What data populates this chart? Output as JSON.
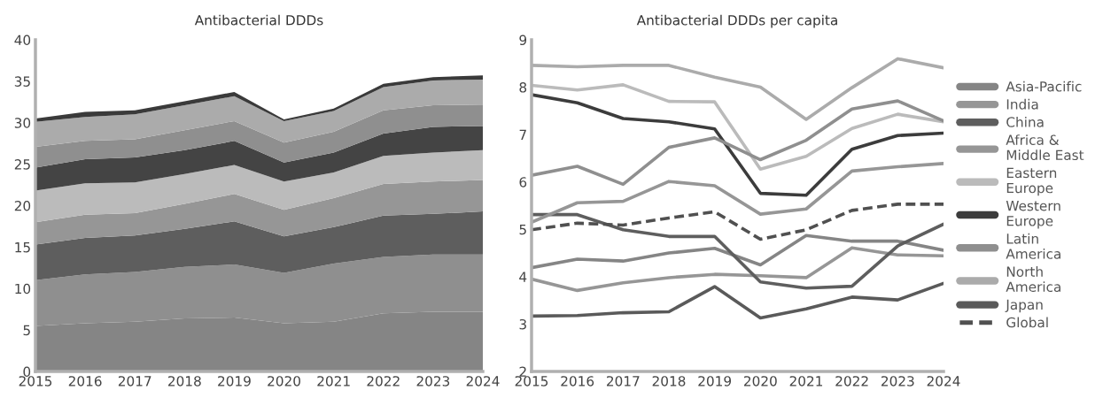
{
  "chart_data": [
    {
      "type": "area",
      "title": "Antibacterial DDDs",
      "stacked": true,
      "x": [
        2015,
        2016,
        2017,
        2018,
        2019,
        2020,
        2021,
        2022,
        2023,
        2024
      ],
      "xlim": [
        2015,
        2024
      ],
      "xticks": [
        2015,
        2016,
        2017,
        2018,
        2019,
        2020,
        2021,
        2022,
        2023,
        2024
      ],
      "ylim": [
        0,
        40
      ],
      "yticks": [
        0,
        5,
        10,
        15,
        20,
        25,
        30,
        35,
        40
      ],
      "grid": false,
      "series": [
        {
          "color": "#858585",
          "values": [
            5.5,
            5.8,
            6.0,
            6.4,
            6.5,
            5.8,
            6.0,
            7.0,
            7.2,
            7.2
          ]
        },
        {
          "color": "#8f8f8f",
          "values": [
            5.5,
            5.9,
            6.0,
            6.2,
            6.4,
            6.1,
            7.0,
            6.8,
            6.9,
            6.9
          ]
        },
        {
          "color": "#5e5e5e",
          "values": [
            4.3,
            4.4,
            4.4,
            4.6,
            5.2,
            4.4,
            4.4,
            5.0,
            4.9,
            5.2
          ]
        },
        {
          "color": "#969696",
          "values": [
            2.7,
            2.8,
            2.7,
            3.0,
            3.3,
            3.2,
            3.5,
            3.8,
            3.9,
            3.8
          ]
        },
        {
          "color": "#bbbbbb",
          "values": [
            3.8,
            3.8,
            3.7,
            3.6,
            3.5,
            3.4,
            3.1,
            3.4,
            3.5,
            3.6
          ]
        },
        {
          "color": "#444444",
          "values": [
            2.8,
            2.9,
            3.0,
            2.9,
            2.9,
            2.3,
            2.4,
            2.7,
            3.1,
            2.9
          ]
        },
        {
          "color": "#8f8f8f",
          "values": [
            2.5,
            2.2,
            2.2,
            2.4,
            2.4,
            2.4,
            2.5,
            2.8,
            2.6,
            2.6
          ]
        },
        {
          "color": "#ababab",
          "values": [
            3.0,
            2.9,
            3.0,
            3.0,
            3.0,
            2.6,
            2.5,
            2.8,
            3.0,
            3.0
          ]
        },
        {
          "color": "#3a3a3a",
          "values": [
            0.4,
            0.6,
            0.5,
            0.5,
            0.5,
            0.2,
            0.3,
            0.4,
            0.4,
            0.5
          ]
        }
      ]
    },
    {
      "type": "line",
      "title": "Antibacterial DDDs per capita",
      "legend": "right",
      "x": [
        2015,
        2016,
        2017,
        2018,
        2019,
        2020,
        2021,
        2022,
        2023,
        2024
      ],
      "xlim": [
        2015,
        2024
      ],
      "xticks": [
        2015,
        2016,
        2017,
        2018,
        2019,
        2020,
        2021,
        2022,
        2023,
        2024
      ],
      "ylim": [
        2,
        9
      ],
      "yticks": [
        2,
        3,
        4,
        5,
        6,
        7,
        8,
        9
      ],
      "grid": false,
      "series": [
        {
          "name": "Asia-Pacific",
          "color": "#858585",
          "values": [
            4.19,
            4.37,
            4.33,
            4.5,
            4.6,
            4.25,
            4.87,
            4.75,
            4.75,
            4.56
          ]
        },
        {
          "name": "India",
          "color": "#969696",
          "values": [
            3.95,
            3.71,
            3.87,
            3.98,
            4.05,
            4.02,
            3.98,
            4.61,
            4.46,
            4.44
          ]
        },
        {
          "name": "China",
          "color": "#5e5e5e",
          "values": [
            5.31,
            5.31,
            4.99,
            4.85,
            4.85,
            3.89,
            3.76,
            3.8,
            4.65,
            5.11
          ]
        },
        {
          "name": "Africa & Middle East",
          "color": "#969696",
          "values": [
            5.15,
            5.56,
            5.59,
            6.01,
            5.92,
            5.32,
            5.43,
            6.23,
            6.32,
            6.39
          ]
        },
        {
          "name": "Eastern Europe",
          "color": "#bbbbbb",
          "values": [
            8.04,
            7.94,
            8.05,
            7.7,
            7.69,
            6.27,
            6.54,
            7.13,
            7.43,
            7.27
          ]
        },
        {
          "name": "Western Europe",
          "color": "#3c3c3c",
          "values": [
            7.84,
            7.67,
            7.34,
            7.27,
            7.12,
            5.76,
            5.72,
            6.69,
            6.98,
            7.03
          ]
        },
        {
          "name": "Latin America",
          "color": "#8f8f8f",
          "values": [
            6.14,
            6.33,
            5.95,
            6.73,
            6.93,
            6.47,
            6.88,
            7.54,
            7.71,
            7.29
          ]
        },
        {
          "name": "North America",
          "color": "#ababab",
          "values": [
            8.46,
            8.43,
            8.46,
            8.46,
            8.21,
            8.0,
            7.32,
            7.99,
            8.6,
            8.41
          ]
        },
        {
          "name": "Japan",
          "color": "#5a5a5a",
          "values": [
            3.17,
            3.18,
            3.24,
            3.26,
            3.79,
            3.13,
            3.32,
            3.57,
            3.51,
            3.86
          ]
        },
        {
          "name": "Global",
          "color": "#505050",
          "line_style": "dashed",
          "values": [
            4.99,
            5.13,
            5.09,
            5.24,
            5.37,
            4.79,
            4.99,
            5.4,
            5.53,
            5.53
          ]
        }
      ]
    }
  ]
}
